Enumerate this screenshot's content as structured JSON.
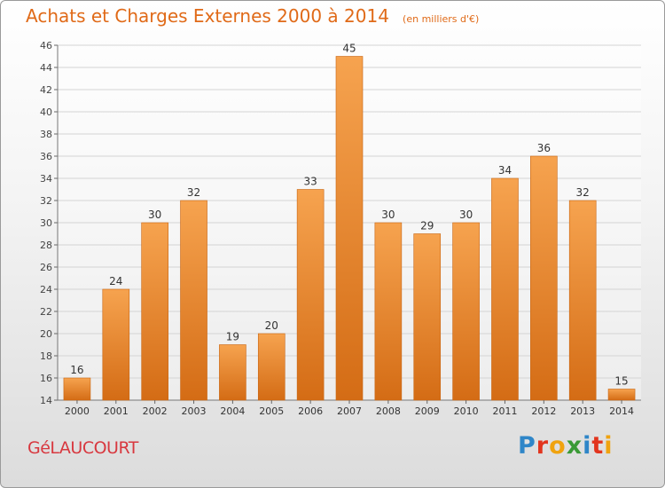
{
  "title": "Achats et Charges Externes 2000 à 2014",
  "unit_note": "(en milliers d'€)",
  "commune": "GéLAUCOURT",
  "brand": {
    "text": "Proxiti",
    "letters": [
      {
        "char": "P",
        "color": "#2f86c8"
      },
      {
        "char": "r",
        "color": "#e2351e"
      },
      {
        "char": "o",
        "color": "#f0a30f"
      },
      {
        "char": "x",
        "color": "#3a9a36"
      },
      {
        "char": "i",
        "color": "#2f86c8"
      },
      {
        "char": "t",
        "color": "#e2351e"
      },
      {
        "char": "i",
        "color": "#f0a30f"
      }
    ]
  },
  "colors": {
    "title": "#e06a18",
    "bar_top": "#f6a34f",
    "bar_bottom": "#d46c15",
    "bar_stroke": "#c86512",
    "grid": "#d4d4d4",
    "commune": "#d8383f"
  },
  "chart_data": {
    "type": "bar",
    "categories": [
      "2000",
      "2001",
      "2002",
      "2003",
      "2004",
      "2005",
      "2006",
      "2007",
      "2008",
      "2009",
      "2010",
      "2011",
      "2012",
      "2013",
      "2014"
    ],
    "values": [
      16,
      24,
      30,
      32,
      19,
      20,
      33,
      45,
      30,
      29,
      30,
      34,
      36,
      32,
      15
    ],
    "ylim": [
      14,
      46
    ],
    "yticks": [
      14,
      16,
      18,
      20,
      22,
      24,
      26,
      28,
      30,
      32,
      34,
      36,
      38,
      40,
      42,
      44,
      46
    ],
    "grid": true,
    "data_labels": true
  }
}
